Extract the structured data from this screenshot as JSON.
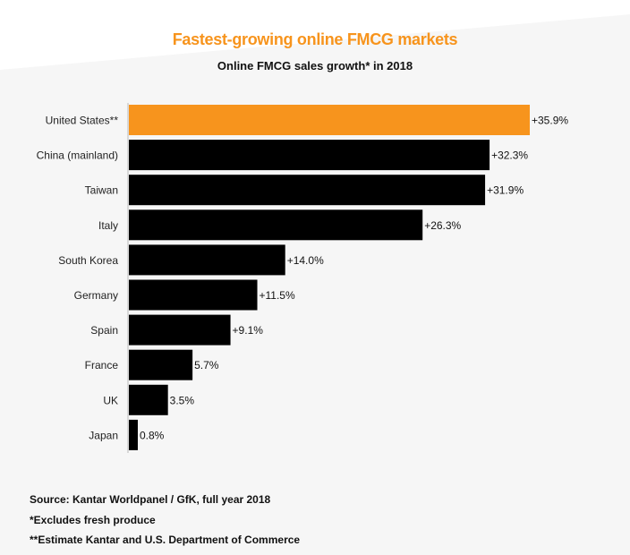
{
  "title": "Fastest-growing online FMCG markets",
  "subtitle": "Online FMCG sales growth* in 2018",
  "colors": {
    "highlight": "#f7941d",
    "bar": "#000000",
    "title": "#f7941d",
    "background": "#f6f6f6"
  },
  "chart_data": {
    "type": "bar",
    "orientation": "horizontal",
    "categories": [
      "United States**",
      "China (mainland)",
      "Taiwan",
      "Italy",
      "South Korea",
      "Germany",
      "Spain",
      "France",
      "UK",
      "Japan"
    ],
    "values": [
      35.9,
      32.3,
      31.9,
      26.3,
      14.0,
      11.5,
      9.1,
      5.7,
      3.5,
      0.8
    ],
    "data_labels": [
      "+35.9%",
      "+32.3%",
      "+31.9%",
      "+26.3%",
      "+14.0%",
      "+11.5%",
      "+9.1%",
      "5.7%",
      "3.5%",
      "0.8%"
    ],
    "highlight_index": 0,
    "xlim": [
      0,
      35.9
    ],
    "grid": false,
    "legend": "none"
  },
  "footnotes": {
    "source": "Source: Kantar Worldpanel / GfK, full year 2018",
    "note1": "*Excludes fresh produce",
    "note2": "**Estimate Kantar and U.S. Department of Commerce"
  }
}
